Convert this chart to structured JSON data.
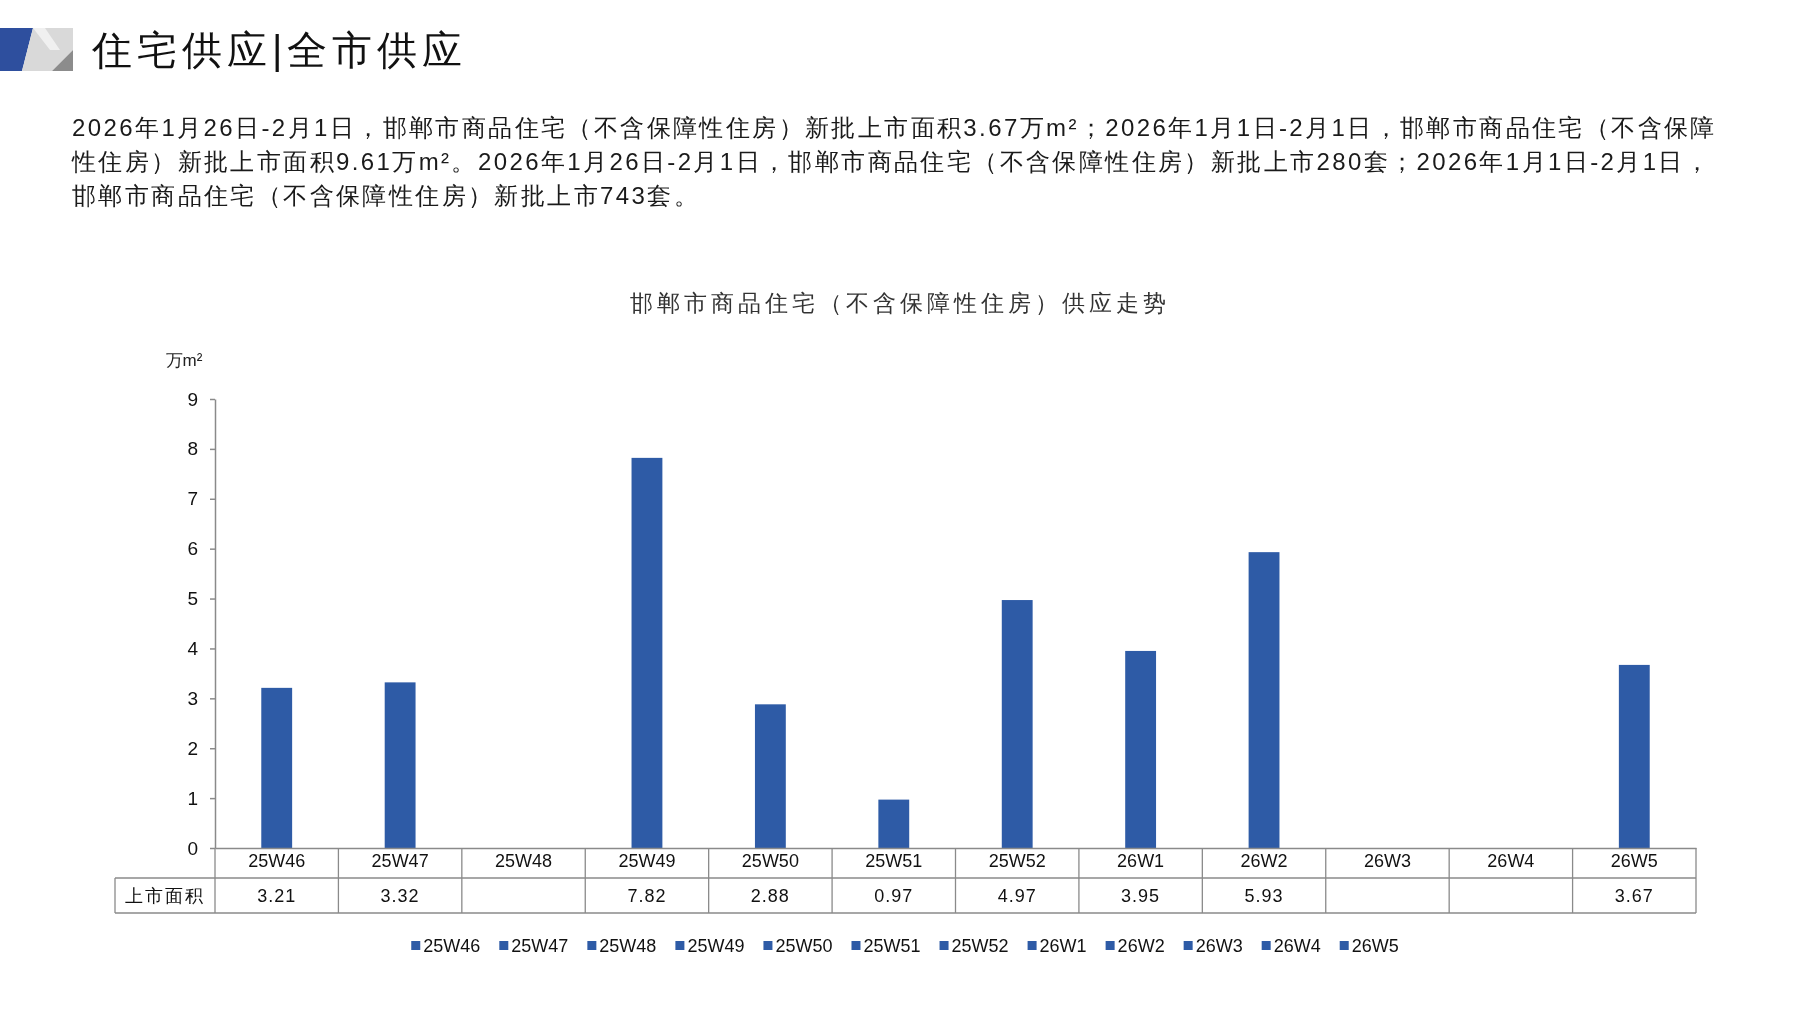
{
  "chart_data": {
    "type": "bar",
    "title": "邯郸市商品住宅（不含保障性住房）供应走势",
    "ylabel": "万m²",
    "annotations": [
      "住宅供应|全市供应",
      "2026年1月26日-2月1日，邯郸市商品住宅（不含保障性住房）新批上市面积3.67万m²；2026年1月1日-2月1日，邯郸市商品住宅（不含保障性住房）新批上市面积9.61万m²。2026年1月26日-2月1日，邯郸市商品住宅（不含保障性住房）新批上市280套；2026年1月1日-2月1日，邯郸市商品住宅（不含保障性住房）新批上市743套。"
    ],
    "categories": [
      "25W46",
      "25W47",
      "25W48",
      "25W49",
      "25W50",
      "25W51",
      "25W52",
      "26W1",
      "26W2",
      "26W3",
      "26W4",
      "26W5"
    ],
    "series": [
      {
        "name": "上市面积",
        "colors": [
          "#2e5ba6",
          "#2e5ba6",
          "#2e5ba6",
          "#2e5ba6",
          "#2e5ba6",
          "#2e5ba6",
          "#2e5ba6",
          "#2e5ba6",
          "#2e5ba6",
          "#2e5ba6",
          "#2e5ba6",
          "#2e5ba6"
        ],
        "values": [
          3.21,
          3.32,
          null,
          7.82,
          2.88,
          0.97,
          4.97,
          3.95,
          5.93,
          null,
          null,
          3.67
        ]
      }
    ],
    "ylim": [
      0,
      9
    ],
    "yticks": [
      0,
      1,
      2,
      3,
      4,
      5,
      6,
      7,
      8,
      9
    ],
    "data_labels": true,
    "legend": "bottom"
  }
}
